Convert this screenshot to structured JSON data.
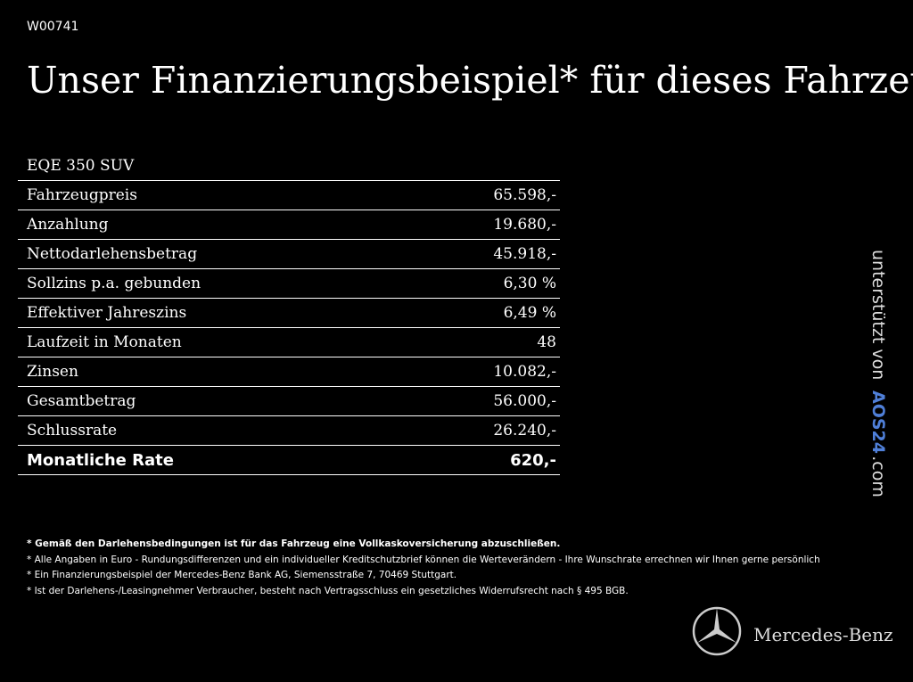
{
  "header": {
    "code": "W00741",
    "title": "Unser Finanzierungsbeispiel* für dieses Fahrzeug:"
  },
  "table": {
    "heading": "EQE 350 SUV",
    "rows": [
      [
        "Fahrzeugpreis",
        "65.598,-"
      ],
      [
        "Anzahlung",
        "19.680,-"
      ],
      [
        "Nettodarlehensbetrag",
        "45.918,-"
      ],
      [
        "Sollzins p.a. gebunden",
        "6,30 %"
      ],
      [
        "Effektiver Jahreszins",
        "6,49 %"
      ],
      [
        "Laufzeit in Monaten",
        "48"
      ],
      [
        "Zinsen",
        "10.082,-"
      ],
      [
        "Gesamtbetrag",
        "56.000,-"
      ],
      [
        "Schlussrate",
        "26.240,-"
      ],
      [
        "Monatliche Rate",
        "620,-"
      ]
    ]
  },
  "footnotes": [
    "* Gemäß den Darlehensbedingungen ist für das Fahrzeug eine Vollkaskoversicherung abzuschließen.",
    "* Alle Angaben in Euro - Rundungsdifferenzen und ein individueller Kreditschutzbrief können die Werteverändern - Ihre Wunschrate errechnen wir Ihnen gerne persönlich",
    "* Ein Finanzierungsbeispiel der Mercedes-Benz Bank AG, Siemensstraße 7, 70469 Stuttgart.",
    "* Ist der Darlehens-/Leasingnehmer Verbraucher, besteht nach Vertragsschluss ein gesetzliches Widerrufsrecht nach § 495 BGB."
  ],
  "side": {
    "prefix": "unterstützt von",
    "brand": "AOS24",
    "suffix": ".com"
  },
  "logo": {
    "name": "Mercedes-Benz"
  }
}
